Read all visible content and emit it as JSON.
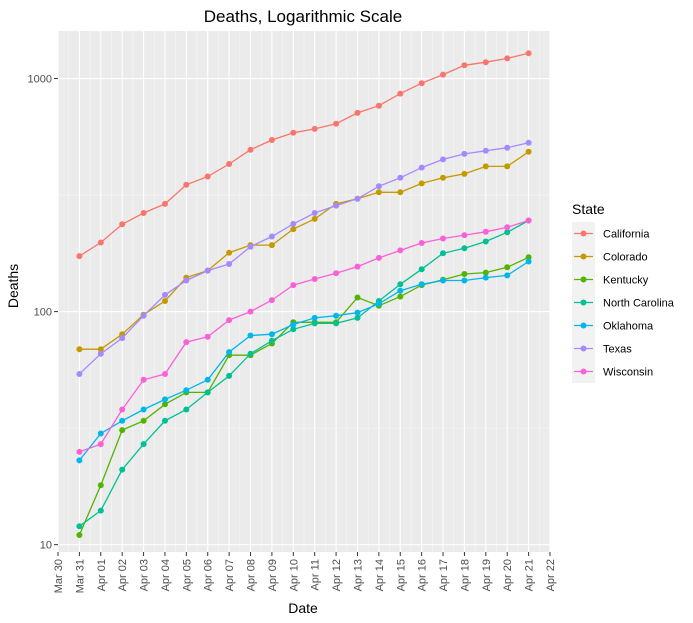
{
  "chart_data": {
    "type": "line",
    "title": "Deaths, Logarithmic Scale",
    "xlabel": "Date",
    "ylabel": "Deaths",
    "y_scale": "log10",
    "ylim": [
      9.3,
      1600
    ],
    "y_ticks": [
      10,
      100,
      1000
    ],
    "y_tick_labels": [
      "10",
      "100",
      "1000"
    ],
    "x_ticks": [
      "Mar 30",
      "Mar 31",
      "Apr 01",
      "Apr 02",
      "Apr 03",
      "Apr 04",
      "Apr 05",
      "Apr 06",
      "Apr 07",
      "Apr 08",
      "Apr 09",
      "Apr 10",
      "Apr 11",
      "Apr 12",
      "Apr 13",
      "Apr 14",
      "Apr 15",
      "Apr 16",
      "Apr 17",
      "Apr 18",
      "Apr 19",
      "Apr 20",
      "Apr 21",
      "Apr 22"
    ],
    "xlim": [
      "Mar 30",
      "Apr 22"
    ],
    "grid": true,
    "legend_placement": "right",
    "legend_title": "State",
    "x": [
      "Mar 31",
      "Apr 01",
      "Apr 02",
      "Apr 03",
      "Apr 04",
      "Apr 05",
      "Apr 06",
      "Apr 07",
      "Apr 08",
      "Apr 09",
      "Apr 10",
      "Apr 11",
      "Apr 12",
      "Apr 13",
      "Apr 14",
      "Apr 15",
      "Apr 16",
      "Apr 17",
      "Apr 18",
      "Apr 19",
      "Apr 20",
      "Apr 21"
    ],
    "series": [
      {
        "name": "California",
        "color": "#F8766D",
        "values": [
          173,
          198,
          237,
          265,
          290,
          350,
          380,
          430,
          495,
          545,
          585,
          608,
          640,
          712,
          765,
          862,
          955,
          1040,
          1140,
          1175,
          1220,
          1285
        ]
      },
      {
        "name": "Colorado",
        "color": "#C49A00",
        "values": [
          69,
          69,
          80,
          97,
          111,
          140,
          150,
          179,
          193,
          193,
          226,
          250,
          290,
          305,
          325,
          325,
          355,
          375,
          390,
          420,
          420,
          485
        ]
      },
      {
        "name": "Kentucky",
        "color": "#53B400",
        "values": [
          11,
          18,
          31,
          34,
          40,
          45,
          45,
          65,
          65,
          73,
          90,
          90,
          90,
          115,
          106,
          116,
          130,
          137,
          145,
          147,
          155,
          171
        ]
      },
      {
        "name": "North Carolina",
        "color": "#00C094",
        "values": [
          12,
          14,
          21,
          27,
          34,
          38,
          45,
          53,
          66,
          75,
          84,
          89,
          89,
          94,
          111,
          131,
          152,
          178,
          187,
          200,
          219,
          246
        ]
      },
      {
        "name": "Oklahoma",
        "color": "#00B6EB",
        "values": [
          23,
          30,
          34,
          38,
          42,
          46,
          51,
          67,
          79,
          80,
          88,
          94,
          96,
          99,
          108,
          123,
          131,
          136,
          136,
          140,
          143,
          164
        ]
      },
      {
        "name": "Texas",
        "color": "#A58AFF",
        "values": [
          54,
          66,
          77,
          96,
          118,
          136,
          150,
          160,
          190,
          210,
          238,
          265,
          285,
          305,
          345,
          375,
          415,
          450,
          475,
          490,
          505,
          530
        ]
      },
      {
        "name": "Wisconsin",
        "color": "#FB61D7",
        "values": [
          25,
          27,
          38,
          51,
          54,
          74,
          78,
          92,
          100,
          112,
          130,
          138,
          146,
          156,
          170,
          183,
          197,
          206,
          213,
          220,
          230,
          246
        ]
      }
    ]
  }
}
